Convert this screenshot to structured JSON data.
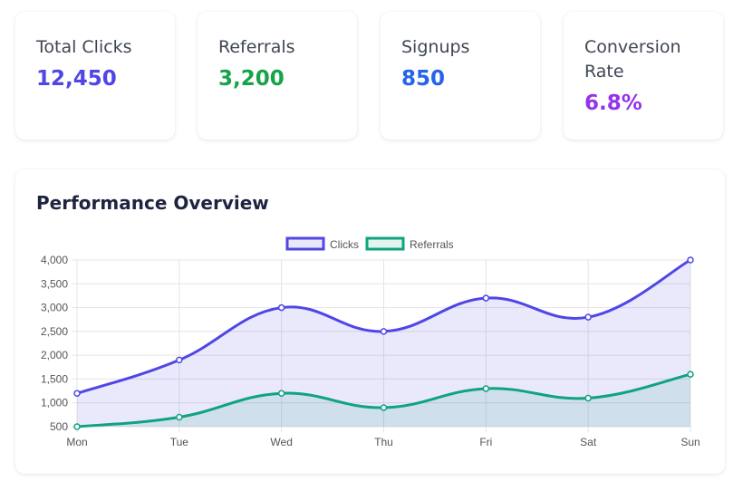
{
  "stats": [
    {
      "label": "Total Clicks",
      "value": "12,450",
      "color": "#4f46e5"
    },
    {
      "label": "Referrals",
      "value": "3,200",
      "color": "#16a34a"
    },
    {
      "label": "Signups",
      "value": "850",
      "color": "#2563eb"
    },
    {
      "label": "Conversion Rate",
      "value": "6.8%",
      "color": "#9333ea"
    }
  ],
  "chart": {
    "title": "Performance Overview"
  },
  "chart_data": {
    "type": "line",
    "categories": [
      "Mon",
      "Tue",
      "Wed",
      "Thu",
      "Fri",
      "Sat",
      "Sun"
    ],
    "series": [
      {
        "name": "Clicks",
        "values": [
          1200,
          1900,
          3000,
          2500,
          3200,
          2800,
          4000
        ],
        "color": "#4f46e5",
        "fill": true
      },
      {
        "name": "Referrals",
        "values": [
          500,
          700,
          1200,
          900,
          1300,
          1100,
          1600
        ],
        "color": "#10a37f",
        "fill": true
      }
    ],
    "ylim": [
      500,
      4000
    ],
    "yticks": [
      500,
      1000,
      1500,
      2000,
      2500,
      3000,
      3500,
      4000
    ],
    "ytick_labels": [
      "500",
      "1,000",
      "1,500",
      "2,000",
      "2,500",
      "3,000",
      "3,500",
      "4,000"
    ],
    "grid": true,
    "legend": "top-center",
    "smooth": true
  }
}
